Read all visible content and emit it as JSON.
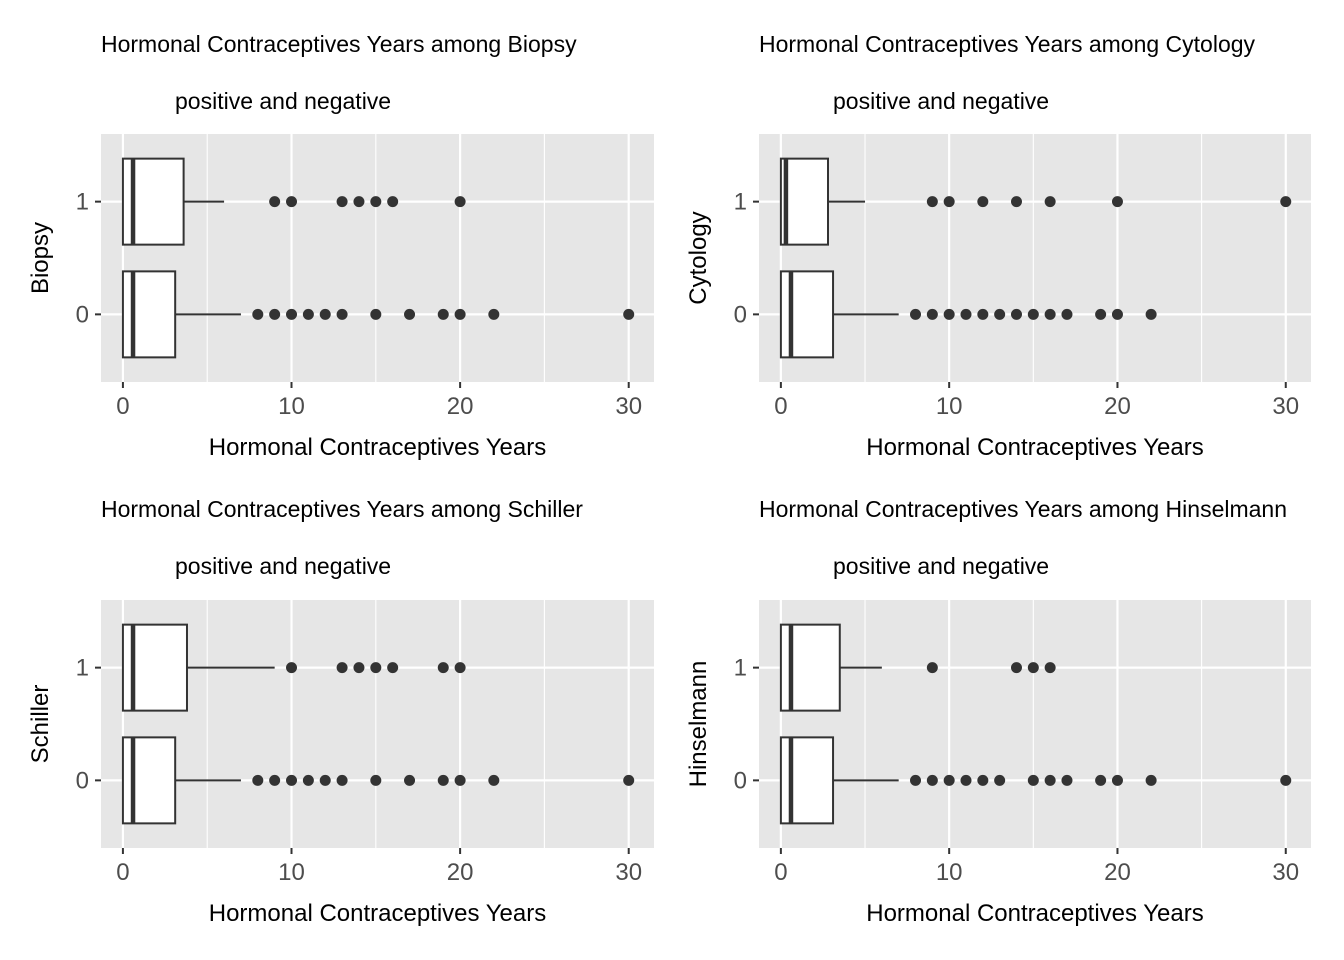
{
  "chart_data": [
    {
      "type": "boxplot",
      "orientation": "horizontal",
      "title_lines": [
        "Hormonal Contraceptives Years among Biopsy",
        "positive and negative"
      ],
      "xlabel": "Hormonal Contraceptives Years",
      "ylabel": "Biopsy",
      "xlim": [
        -1.3,
        31.5
      ],
      "xticks": [
        0,
        10,
        20,
        30
      ],
      "categories": [
        "0",
        "1"
      ],
      "boxes": [
        {
          "category": "0",
          "whisker_low": 0,
          "q1": 0,
          "median": 0.6,
          "q3": 3.1,
          "whisker_high": 7,
          "outliers": [
            8,
            9,
            10,
            11,
            12,
            13,
            15,
            17,
            19,
            20,
            22,
            30
          ]
        },
        {
          "category": "1",
          "whisker_low": 0,
          "q1": 0,
          "median": 0.6,
          "q3": 3.6,
          "whisker_high": 6,
          "outliers": [
            9,
            10,
            13,
            14,
            15,
            16,
            20
          ]
        }
      ]
    },
    {
      "type": "boxplot",
      "orientation": "horizontal",
      "title_lines": [
        "Hormonal Contraceptives Years among Cytology",
        "positive and negative"
      ],
      "xlabel": "Hormonal Contraceptives Years",
      "ylabel": "Cytology",
      "xlim": [
        -1.3,
        31.5
      ],
      "xticks": [
        0,
        10,
        20,
        30
      ],
      "categories": [
        "0",
        "1"
      ],
      "boxes": [
        {
          "category": "0",
          "whisker_low": 0,
          "q1": 0,
          "median": 0.6,
          "q3": 3.1,
          "whisker_high": 7,
          "outliers": [
            8,
            9,
            10,
            11,
            12,
            13,
            14,
            15,
            16,
            17,
            19,
            20,
            22
          ]
        },
        {
          "category": "1",
          "whisker_low": 0,
          "q1": 0,
          "median": 0.3,
          "q3": 2.8,
          "whisker_high": 5,
          "outliers": [
            9,
            10,
            12,
            14,
            16,
            20,
            30
          ]
        }
      ]
    },
    {
      "type": "boxplot",
      "orientation": "horizontal",
      "title_lines": [
        "Hormonal Contraceptives Years among Schiller",
        "positive and negative"
      ],
      "xlabel": "Hormonal Contraceptives Years",
      "ylabel": "Schiller",
      "xlim": [
        -1.3,
        31.5
      ],
      "xticks": [
        0,
        10,
        20,
        30
      ],
      "categories": [
        "0",
        "1"
      ],
      "boxes": [
        {
          "category": "0",
          "whisker_low": 0,
          "q1": 0,
          "median": 0.6,
          "q3": 3.1,
          "whisker_high": 7,
          "outliers": [
            8,
            9,
            10,
            11,
            12,
            13,
            15,
            17,
            19,
            20,
            22,
            30
          ]
        },
        {
          "category": "1",
          "whisker_low": 0,
          "q1": 0,
          "median": 0.6,
          "q3": 3.8,
          "whisker_high": 9,
          "outliers": [
            10,
            13,
            14,
            15,
            16,
            19,
            20
          ]
        }
      ]
    },
    {
      "type": "boxplot",
      "orientation": "horizontal",
      "title_lines": [
        "Hormonal Contraceptives Years among Hinselmann",
        "positive and negative"
      ],
      "xlabel": "Hormonal Contraceptives Years",
      "ylabel": "Hinselmann",
      "xlim": [
        -1.3,
        31.5
      ],
      "xticks": [
        0,
        10,
        20,
        30
      ],
      "categories": [
        "0",
        "1"
      ],
      "boxes": [
        {
          "category": "0",
          "whisker_low": 0,
          "q1": 0,
          "median": 0.6,
          "q3": 3.1,
          "whisker_high": 7,
          "outliers": [
            8,
            9,
            10,
            11,
            12,
            13,
            15,
            16,
            17,
            19,
            20,
            22,
            30
          ]
        },
        {
          "category": "1",
          "whisker_low": 0,
          "q1": 0,
          "median": 0.6,
          "q3": 3.5,
          "whisker_high": 6,
          "outliers": [
            9,
            14,
            15,
            16
          ]
        }
      ]
    }
  ]
}
